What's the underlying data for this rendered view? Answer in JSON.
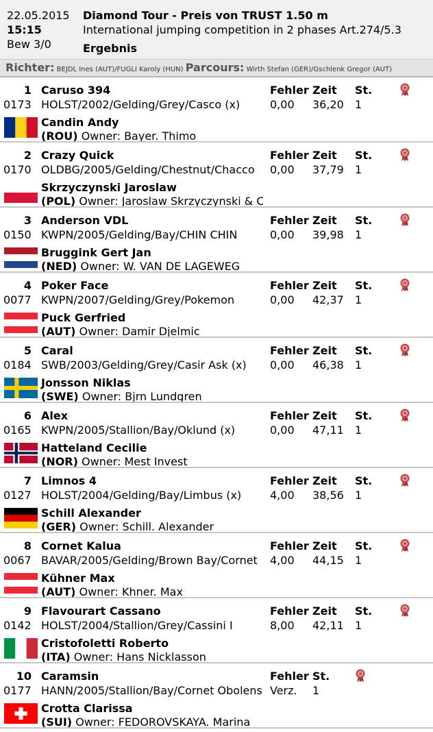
{
  "header": {
    "date": "22.05.2015",
    "time": "15:15",
    "bew": "Bew 3/0",
    "title": "Diamond Tour - Preis von TRUST 1.50 m",
    "subtitle": "International jumping competition in 2 phases Art.274/5.3",
    "result": "Ergebnis"
  },
  "judges": {
    "richter_label": "Richter:",
    "richter": "BEJDL Ines (AUT)/FUGLI Karoly (HUN)",
    "parcours_label": "Parcours:",
    "parcours": "Wirth Stefan (GER)/Gschlenk Gregor (AUT)"
  },
  "columns": {
    "fehler": "Fehler",
    "zeit": "Zeit",
    "st": "St."
  },
  "rows": [
    {
      "rank": "1",
      "horse": "Caruso 394",
      "num": "0173",
      "info": "HOLST/2002/Gelding/Grey/Casco (x)",
      "fehler": "0,00",
      "zeit": "36,20",
      "st": "1",
      "rider": "Candin Andy",
      "nat": "(ROU)",
      "owner": "Owner: Bayer. Thimo",
      "flag": "rou"
    },
    {
      "rank": "2",
      "horse": "Crazy Quick",
      "num": "0170",
      "info": "OLDBG/2005/Gelding/Chestnut/Chacco",
      "fehler": "0,00",
      "zeit": "37,79",
      "st": "1",
      "rider": "Skrzyczynski Jaroslaw",
      "nat": "(POL)",
      "owner": "Owner: Jaroslaw Skrzyczynski & Co",
      "flag": "pol"
    },
    {
      "rank": "3",
      "horse": "Anderson VDL",
      "num": "0150",
      "info": "KWPN/2005/Gelding/Bay/CHIN CHIN",
      "fehler": "0,00",
      "zeit": "39,98",
      "st": "1",
      "rider": "Bruggink Gert Jan",
      "nat": "(NED)",
      "owner": "Owner: W. VAN DE LAGEWEG",
      "flag": "ned"
    },
    {
      "rank": "4",
      "horse": "Poker Face",
      "num": "0077",
      "info": "KWPN/2007/Gelding/Grey/Pokemon",
      "fehler": "0,00",
      "zeit": "42,37",
      "st": "1",
      "rider": "Puck Gerfried",
      "nat": "(AUT)",
      "owner": "Owner: Damir Djelmic",
      "flag": "aut"
    },
    {
      "rank": "5",
      "horse": "Caral",
      "num": "0184",
      "info": "SWB/2003/Gelding/Grey/Casir Ask (x)",
      "fehler": "0,00",
      "zeit": "46,38",
      "st": "1",
      "rider": "Jonsson Niklas",
      "nat": "(SWE)",
      "owner": "Owner: Bjrn Lundgren",
      "flag": "swe"
    },
    {
      "rank": "6",
      "horse": "Alex",
      "num": "0165",
      "info": "KWPN/2005/Stallion/Bay/Oklund (x)",
      "fehler": "0,00",
      "zeit": "47,11",
      "st": "1",
      "rider": "Hatteland Cecilie",
      "nat": "(NOR)",
      "owner": "Owner: Mest Invest",
      "flag": "nor"
    },
    {
      "rank": "7",
      "horse": "Limnos 4",
      "num": "0127",
      "info": "HOLST/2004/Gelding/Bay/Limbus (x)",
      "fehler": "4,00",
      "zeit": "38,56",
      "st": "1",
      "rider": "Schill Alexander",
      "nat": "(GER)",
      "owner": "Owner: Schill. Alexander",
      "flag": "ger"
    },
    {
      "rank": "8",
      "horse": "Cornet Kalua",
      "num": "0067",
      "info": "BAVAR/2005/Gelding/Brown Bay/Cornet",
      "fehler": "4,00",
      "zeit": "44,15",
      "st": "1",
      "rider": "Kühner Max",
      "nat": "(AUT)",
      "owner": "Owner: Khner. Max",
      "flag": "aut"
    },
    {
      "rank": "9",
      "horse": "Flavourart Cassano",
      "num": "0142",
      "info": "HOLST/2004/Stallion/Grey/Cassini I",
      "fehler": "8,00",
      "zeit": "42,11",
      "st": "1",
      "rider": "Cristofoletti Roberto",
      "nat": "(ITA)",
      "owner": "Owner: Hans Nicklasson",
      "flag": "ita"
    },
    {
      "rank": "10",
      "horse": "Caramsin",
      "num": "0177",
      "info": "HANN/2005/Stallion/Bay/Cornet Obolensky",
      "fehler": "Verz.",
      "zeit": "",
      "st": "1",
      "rider": "Crotta Clarissa",
      "nat": "(SUI)",
      "owner": "Owner: FEDOROVSKAYA. Marina",
      "flag": "sui",
      "short": true
    }
  ]
}
